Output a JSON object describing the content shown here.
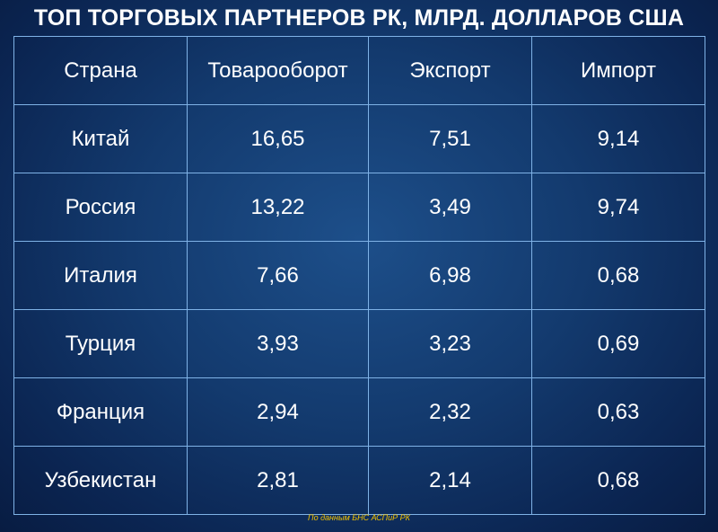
{
  "header": {
    "title": "ТОП ТОРГОВЫХ ПАРТНЕРОВ РК, МЛРД. ДОЛЛАРОВ США"
  },
  "table": {
    "columns": [
      "Страна",
      "Товарооборот",
      "Экспорт",
      "Импорт"
    ],
    "rows": [
      [
        "Китай",
        "16,65",
        "7,51",
        "9,14"
      ],
      [
        "Россия",
        "13,22",
        "3,49",
        "9,74"
      ],
      [
        "Италия",
        "7,66",
        "6,98",
        "0,68"
      ],
      [
        "Турция",
        "3,93",
        "3,23",
        "0,69"
      ],
      [
        "Франция",
        "2,94",
        "2,32",
        "0,63"
      ],
      [
        "Узбекистан",
        "2,81",
        "2,14",
        "0,68"
      ]
    ]
  },
  "footer": {
    "source": "По данным БНС АСПиР РК"
  }
}
